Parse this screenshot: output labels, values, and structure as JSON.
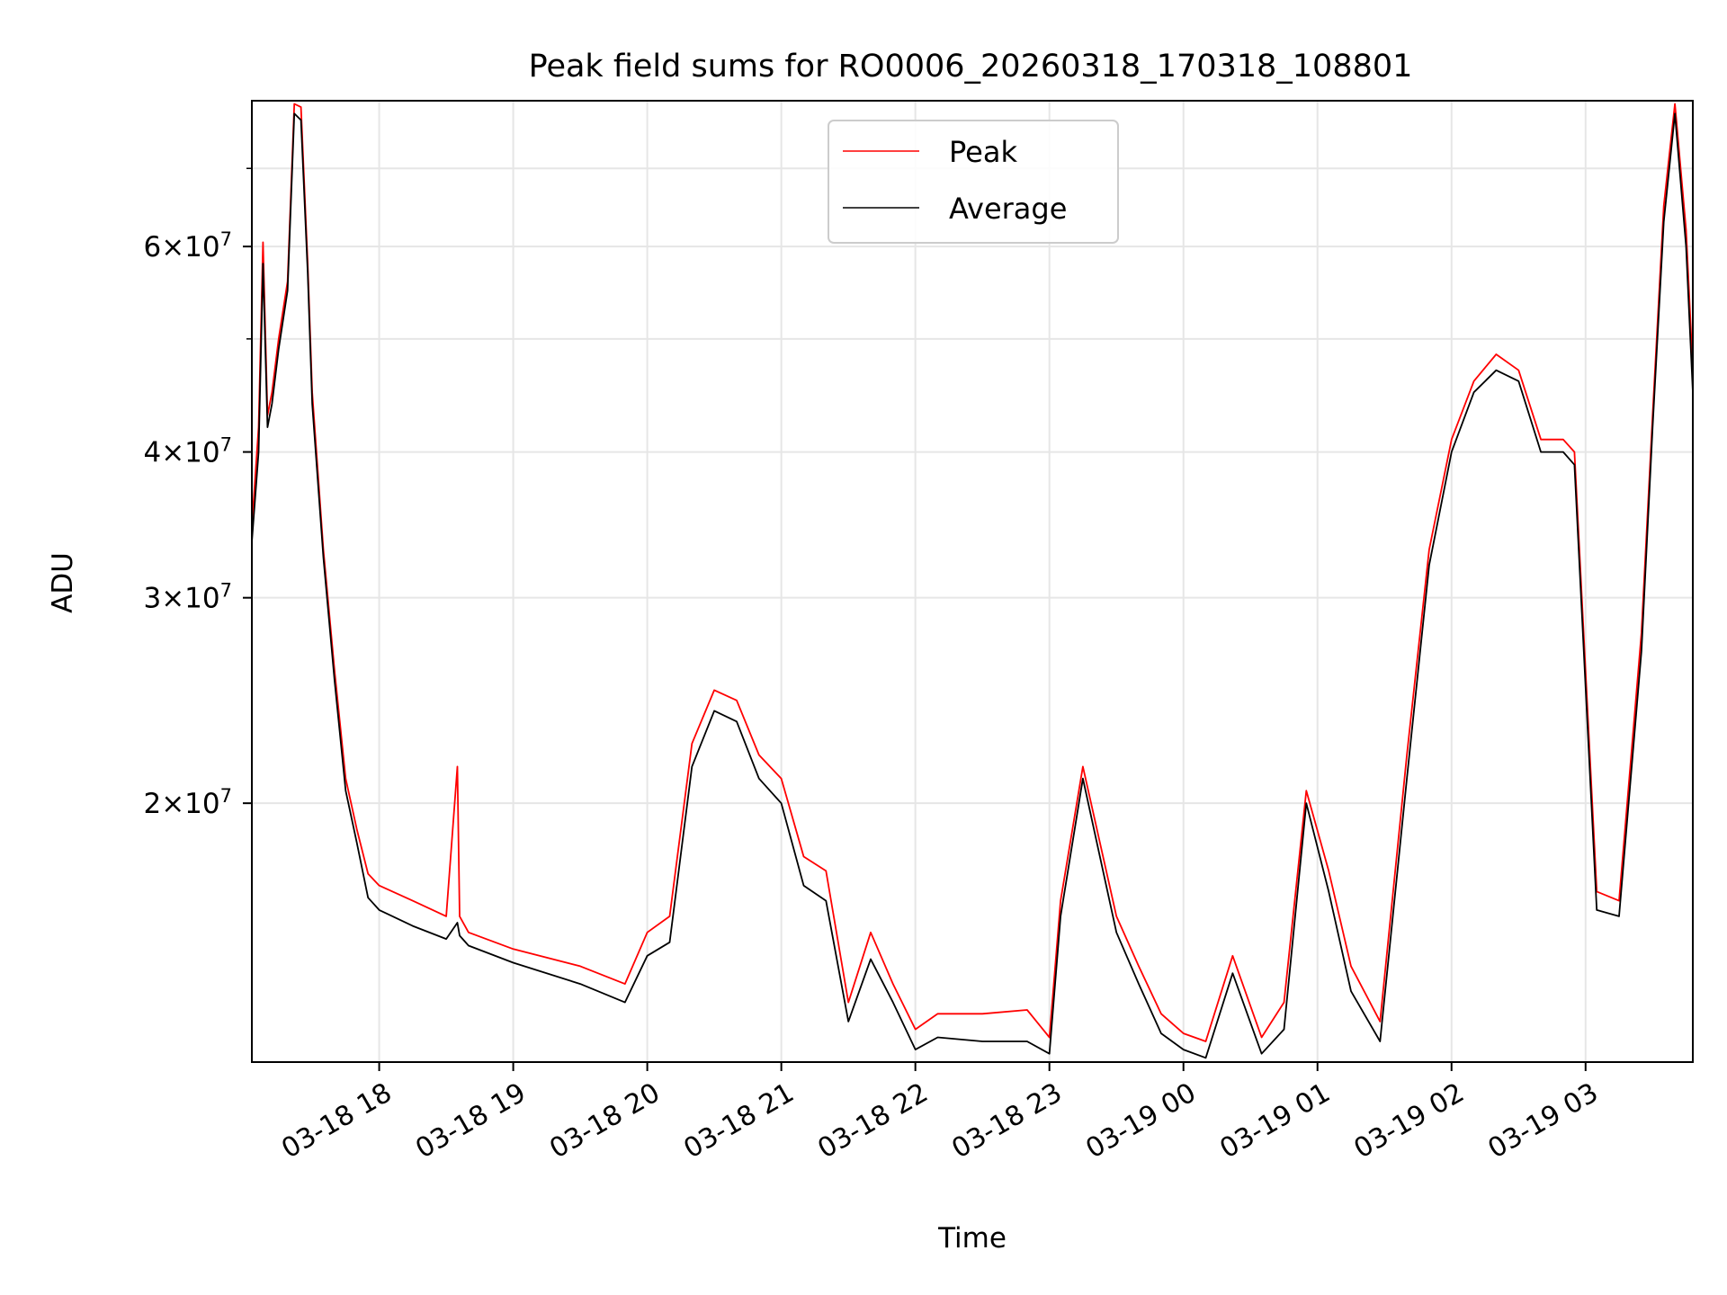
{
  "chart_data": {
    "type": "line",
    "title": "Peak field sums for RO0006_20260318_170318_108801",
    "xlabel": "Time",
    "ylabel": "ADU",
    "yscale": "log",
    "ylim": [
      12000000,
      80000000
    ],
    "xlim": [
      "2026-03-18 17:03",
      "2026-03-19 03:48"
    ],
    "grid": true,
    "legend_position": "upper center",
    "x_ticks": [
      {
        "t": "2026-03-18 18:00",
        "label": "03-18 18"
      },
      {
        "t": "2026-03-18 19:00",
        "label": "03-18 19"
      },
      {
        "t": "2026-03-18 20:00",
        "label": "03-18 20"
      },
      {
        "t": "2026-03-18 21:00",
        "label": "03-18 21"
      },
      {
        "t": "2026-03-18 22:00",
        "label": "03-18 22"
      },
      {
        "t": "2026-03-18 23:00",
        "label": "03-18 23"
      },
      {
        "t": "2026-03-19 00:00",
        "label": "03-19 00"
      },
      {
        "t": "2026-03-19 01:00",
        "label": "03-19 01"
      },
      {
        "t": "2026-03-19 02:00",
        "label": "03-19 02"
      },
      {
        "t": "2026-03-19 03:00",
        "label": "03-19 03"
      }
    ],
    "y_ticks_major": [
      {
        "value": 20000000,
        "mant": "2",
        "exp": "7"
      },
      {
        "value": 30000000,
        "mant": "3",
        "exp": "7"
      },
      {
        "value": 40000000,
        "mant": "4",
        "exp": "7"
      },
      {
        "value": 60000000,
        "mant": "6",
        "exp": "7"
      }
    ],
    "y_ticks_minor": [
      50000000,
      70000000
    ],
    "series": [
      {
        "name": "Peak",
        "color": "#ff0000",
        "x": [
          "2026-03-18 17:03",
          "2026-03-18 17:06",
          "2026-03-18 17:08",
          "2026-03-18 17:10",
          "2026-03-18 17:12",
          "2026-03-18 17:15",
          "2026-03-18 17:19",
          "2026-03-18 17:22",
          "2026-03-18 17:25",
          "2026-03-18 17:28",
          "2026-03-18 17:30",
          "2026-03-18 17:35",
          "2026-03-18 17:40",
          "2026-03-18 17:45",
          "2026-03-18 17:50",
          "2026-03-18 17:55",
          "2026-03-18 18:00",
          "2026-03-18 18:15",
          "2026-03-18 18:30",
          "2026-03-18 18:35",
          "2026-03-18 18:36",
          "2026-03-18 18:40",
          "2026-03-18 19:00",
          "2026-03-18 19:30",
          "2026-03-18 19:50",
          "2026-03-18 20:00",
          "2026-03-18 20:10",
          "2026-03-18 20:20",
          "2026-03-18 20:30",
          "2026-03-18 20:40",
          "2026-03-18 20:50",
          "2026-03-18 21:00",
          "2026-03-18 21:10",
          "2026-03-18 21:20",
          "2026-03-18 21:30",
          "2026-03-18 21:40",
          "2026-03-18 21:50",
          "2026-03-18 22:00",
          "2026-03-18 22:10",
          "2026-03-18 22:30",
          "2026-03-18 22:50",
          "2026-03-18 23:00",
          "2026-03-18 23:05",
          "2026-03-18 23:15",
          "2026-03-18 23:30",
          "2026-03-18 23:40",
          "2026-03-18 23:50",
          "2026-03-19 00:00",
          "2026-03-19 00:10",
          "2026-03-19 00:22",
          "2026-03-19 00:35",
          "2026-03-19 00:45",
          "2026-03-19 00:55",
          "2026-03-19 01:05",
          "2026-03-19 01:15",
          "2026-03-19 01:28",
          "2026-03-19 01:40",
          "2026-03-19 01:50",
          "2026-03-19 02:00",
          "2026-03-19 02:10",
          "2026-03-19 02:20",
          "2026-03-19 02:30",
          "2026-03-19 02:40",
          "2026-03-19 02:50",
          "2026-03-19 02:55",
          "2026-03-19 03:05",
          "2026-03-19 03:15",
          "2026-03-19 03:25",
          "2026-03-19 03:30",
          "2026-03-19 03:35",
          "2026-03-19 03:40",
          "2026-03-19 03:45",
          "2026-03-19 03:48"
        ],
        "y": [
          34500000,
          42000000,
          60500000,
          43000000,
          45000000,
          50000000,
          56000000,
          79500000,
          79000000,
          58000000,
          45000000,
          33000000,
          26000000,
          21000000,
          19000000,
          17400000,
          17000000,
          16500000,
          16000000,
          21500000,
          16000000,
          15500000,
          15000000,
          14500000,
          14000000,
          15500000,
          16000000,
          22500000,
          25000000,
          24500000,
          22000000,
          21000000,
          18000000,
          17500000,
          13500000,
          15500000,
          14000000,
          12800000,
          13200000,
          13200000,
          13300000,
          12600000,
          16500000,
          21500000,
          16000000,
          14500000,
          13200000,
          12700000,
          12500000,
          14800000,
          12600000,
          13500000,
          20500000,
          17500000,
          14500000,
          13000000,
          22000000,
          33000000,
          41000000,
          46000000,
          48500000,
          47000000,
          41000000,
          41000000,
          40000000,
          16800000,
          16500000,
          28000000,
          43000000,
          65000000,
          79500000,
          62000000,
          47000000
        ]
      },
      {
        "name": "Average",
        "color": "#000000",
        "x": [
          "2026-03-18 17:03",
          "2026-03-18 17:06",
          "2026-03-18 17:08",
          "2026-03-18 17:10",
          "2026-03-18 17:12",
          "2026-03-18 17:15",
          "2026-03-18 17:19",
          "2026-03-18 17:22",
          "2026-03-18 17:25",
          "2026-03-18 17:28",
          "2026-03-18 17:30",
          "2026-03-18 17:35",
          "2026-03-18 17:40",
          "2026-03-18 17:45",
          "2026-03-18 17:50",
          "2026-03-18 17:55",
          "2026-03-18 18:00",
          "2026-03-18 18:15",
          "2026-03-18 18:30",
          "2026-03-18 18:35",
          "2026-03-18 18:36",
          "2026-03-18 18:40",
          "2026-03-18 19:00",
          "2026-03-18 19:30",
          "2026-03-18 19:50",
          "2026-03-18 20:00",
          "2026-03-18 20:10",
          "2026-03-18 20:20",
          "2026-03-18 20:30",
          "2026-03-18 20:40",
          "2026-03-18 20:50",
          "2026-03-18 21:00",
          "2026-03-18 21:10",
          "2026-03-18 21:20",
          "2026-03-18 21:30",
          "2026-03-18 21:40",
          "2026-03-18 21:50",
          "2026-03-18 22:00",
          "2026-03-18 22:10",
          "2026-03-18 22:30",
          "2026-03-18 22:50",
          "2026-03-18 23:00",
          "2026-03-18 23:05",
          "2026-03-18 23:15",
          "2026-03-18 23:30",
          "2026-03-18 23:40",
          "2026-03-18 23:50",
          "2026-03-19 00:00",
          "2026-03-19 00:10",
          "2026-03-19 00:22",
          "2026-03-19 00:35",
          "2026-03-19 00:45",
          "2026-03-19 00:55",
          "2026-03-19 01:05",
          "2026-03-19 01:15",
          "2026-03-19 01:28",
          "2026-03-19 01:40",
          "2026-03-19 01:50",
          "2026-03-19 02:00",
          "2026-03-19 02:10",
          "2026-03-19 02:20",
          "2026-03-19 02:30",
          "2026-03-19 02:40",
          "2026-03-19 02:50",
          "2026-03-19 02:55",
          "2026-03-19 03:05",
          "2026-03-19 03:15",
          "2026-03-19 03:25",
          "2026-03-19 03:30",
          "2026-03-19 03:35",
          "2026-03-19 03:40",
          "2026-03-19 03:45",
          "2026-03-19 03:48"
        ],
        "y": [
          33500000,
          40000000,
          58000000,
          42000000,
          44000000,
          49000000,
          55000000,
          78000000,
          77000000,
          57000000,
          44000000,
          32500000,
          25500000,
          20500000,
          18500000,
          16600000,
          16200000,
          15700000,
          15300000,
          15800000,
          15400000,
          15100000,
          14600000,
          14000000,
          13500000,
          14800000,
          15200000,
          21500000,
          24000000,
          23500000,
          21000000,
          20000000,
          17000000,
          16500000,
          13000000,
          14700000,
          13500000,
          12300000,
          12600000,
          12500000,
          12500000,
          12200000,
          16000000,
          21000000,
          15500000,
          14000000,
          12700000,
          12300000,
          12100000,
          14300000,
          12200000,
          12800000,
          20000000,
          16800000,
          13800000,
          12500000,
          21000000,
          32000000,
          40000000,
          45000000,
          47000000,
          46000000,
          40000000,
          40000000,
          39000000,
          16200000,
          16000000,
          27000000,
          42000000,
          63000000,
          78000000,
          60000000,
          45000000
        ]
      }
    ]
  }
}
